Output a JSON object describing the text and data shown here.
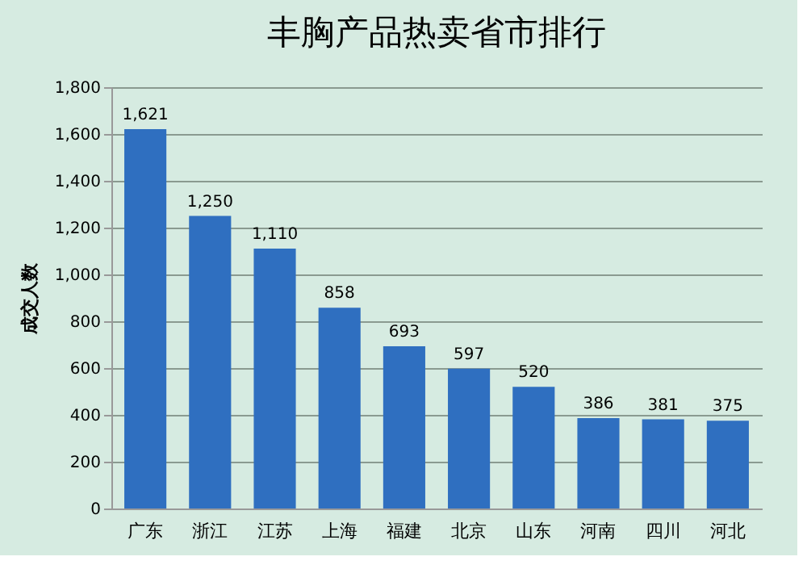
{
  "chart_data": {
    "type": "bar",
    "title": "丰胸产品热卖省市排行",
    "ylabel": "成交人数",
    "categories": [
      "广东",
      "浙江",
      "江苏",
      "上海",
      "福建",
      "北京",
      "山东",
      "河南",
      "四川",
      "河北"
    ],
    "values": [
      1621,
      1250,
      1110,
      858,
      693,
      597,
      520,
      386,
      381,
      375
    ],
    "color": "#2f6fc0",
    "ylim": [
      0,
      1800
    ],
    "yticks": [
      0,
      {
        "value": 200,
        "label": "200"
      },
      {
        "value": 400,
        "label": "400"
      },
      {
        "value": 600,
        "label": "600"
      },
      {
        "value": 800,
        "label": "800"
      },
      {
        "value": 1000,
        "label": "1,000"
      },
      {
        "value": 1200,
        "label": "1,200"
      },
      {
        "value": 1400,
        "label": "1,400"
      },
      {
        "value": 1600,
        "label": "1,600"
      },
      {
        "value": 1800,
        "label": "1,800"
      }
    ],
    "grid": "y",
    "value_labels": [
      "1,621",
      "1,250",
      "1,110",
      "858",
      "693",
      "597",
      "520",
      "386",
      "381",
      "375"
    ]
  }
}
